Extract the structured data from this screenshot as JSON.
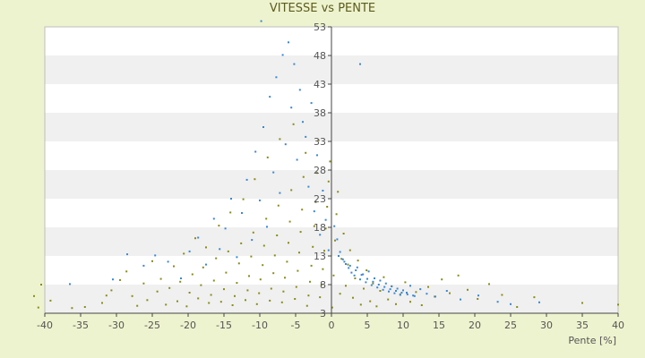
{
  "chart_data": {
    "type": "scatter",
    "title": "VITESSE vs PENTE",
    "xlabel": "Pente [%]",
    "ylabel": "",
    "xlim": [
      -40,
      40
    ],
    "ylim": [
      3,
      53
    ],
    "x_ticks": [
      -40,
      -35,
      -30,
      -25,
      -20,
      -15,
      -10,
      -5,
      0,
      5,
      10,
      15,
      20,
      25,
      30,
      35,
      40
    ],
    "y_ticks": [
      3,
      8,
      13,
      18,
      23,
      28,
      33,
      38,
      43,
      48,
      53
    ],
    "grid": "horizontal alternating bands",
    "legend": "none",
    "series": [
      {
        "color": "#8a8a1a",
        "points": [
          [
            -40.5,
            8
          ],
          [
            -41.5,
            6
          ],
          [
            -40.9,
            4
          ],
          [
            -39.2,
            5.2
          ],
          [
            -36.2,
            3.9
          ],
          [
            -34.4,
            4.1
          ],
          [
            -32.0,
            4.8
          ],
          [
            -31.4,
            6.1
          ],
          [
            -30.7,
            7.0
          ],
          [
            -29.5,
            8.8
          ],
          [
            -28.6,
            10.3
          ],
          [
            -27.8,
            6.0
          ],
          [
            -27.1,
            4.3
          ],
          [
            -26.2,
            8.2
          ],
          [
            -25.7,
            5.3
          ],
          [
            -25.0,
            12.1
          ],
          [
            -24.3,
            6.8
          ],
          [
            -23.8,
            9.0
          ],
          [
            -23.1,
            4.5
          ],
          [
            -22.6,
            7.4
          ],
          [
            -22.0,
            11.2
          ],
          [
            -21.5,
            5.1
          ],
          [
            -21.1,
            8.5
          ],
          [
            -20.6,
            13.4
          ],
          [
            -20.2,
            4.2
          ],
          [
            -19.8,
            6.6
          ],
          [
            -19.4,
            9.8
          ],
          [
            -19.0,
            16.1
          ],
          [
            -18.6,
            5.6
          ],
          [
            -18.2,
            7.9
          ],
          [
            -17.9,
            11.0
          ],
          [
            -17.5,
            14.5
          ],
          [
            -17.1,
            4.8
          ],
          [
            -16.8,
            6.2
          ],
          [
            -16.4,
            8.7
          ],
          [
            -16.1,
            12.6
          ],
          [
            -15.7,
            18.3
          ],
          [
            -15.4,
            5.0
          ],
          [
            -15.0,
            7.2
          ],
          [
            -14.7,
            10.1
          ],
          [
            -14.4,
            13.8
          ],
          [
            -14.1,
            20.6
          ],
          [
            -13.8,
            4.4
          ],
          [
            -13.5,
            6.0
          ],
          [
            -13.2,
            8.3
          ],
          [
            -12.9,
            11.7
          ],
          [
            -12.6,
            15.2
          ],
          [
            -12.3,
            22.9
          ],
          [
            -12.0,
            5.3
          ],
          [
            -11.7,
            7.0
          ],
          [
            -11.5,
            9.5
          ],
          [
            -11.2,
            12.9
          ],
          [
            -10.9,
            17.1
          ],
          [
            -10.7,
            26.4
          ],
          [
            -10.4,
            4.6
          ],
          [
            -10.1,
            6.5
          ],
          [
            -9.9,
            8.9
          ],
          [
            -9.6,
            11.4
          ],
          [
            -9.4,
            14.8
          ],
          [
            -9.1,
            19.5
          ],
          [
            -8.9,
            30.2
          ],
          [
            -8.6,
            5.2
          ],
          [
            -8.4,
            7.3
          ],
          [
            -8.1,
            10.0
          ],
          [
            -7.9,
            13.1
          ],
          [
            -7.6,
            16.6
          ],
          [
            -7.4,
            21.8
          ],
          [
            -7.2,
            33.4
          ],
          [
            -6.9,
            4.9
          ],
          [
            -6.7,
            6.8
          ],
          [
            -6.5,
            9.2
          ],
          [
            -6.2,
            12.0
          ],
          [
            -6.0,
            15.3
          ],
          [
            -5.8,
            19.0
          ],
          [
            -5.6,
            24.5
          ],
          [
            -5.3,
            36.0
          ],
          [
            -5.1,
            5.5
          ],
          [
            -4.9,
            7.6
          ],
          [
            -4.7,
            10.4
          ],
          [
            -4.5,
            13.6
          ],
          [
            -4.3,
            17.2
          ],
          [
            -4.1,
            21.1
          ],
          [
            -3.9,
            26.8
          ],
          [
            -3.6,
            31.0
          ],
          [
            -3.4,
            4.3
          ],
          [
            -3.2,
            6.1
          ],
          [
            -3.0,
            8.5
          ],
          [
            -2.8,
            11.3
          ],
          [
            -2.6,
            14.6
          ],
          [
            -2.4,
            18.2
          ],
          [
            -2.2,
            22.4
          ],
          [
            -2.0,
            27.5
          ],
          [
            -1.8,
            33.2
          ],
          [
            -1.6,
            5.8
          ],
          [
            -1.4,
            8.0
          ],
          [
            -1.2,
            10.7
          ],
          [
            -1.0,
            13.9
          ],
          [
            -0.8,
            17.8
          ],
          [
            -0.6,
            21.6
          ],
          [
            -0.4,
            26.0
          ],
          [
            -0.2,
            29.5
          ],
          [
            0.1,
            4.0
          ],
          [
            0.3,
            9.6
          ],
          [
            0.5,
            15.7
          ],
          [
            0.7,
            20.3
          ],
          [
            0.9,
            24.2
          ],
          [
            1.2,
            6.4
          ],
          [
            1.4,
            12.5
          ],
          [
            1.7,
            16.9
          ],
          [
            2.0,
            7.8
          ],
          [
            2.3,
            11.5
          ],
          [
            2.6,
            14.0
          ],
          [
            3.0,
            5.7
          ],
          [
            3.3,
            9.1
          ],
          [
            3.7,
            12.2
          ],
          [
            4.1,
            4.5
          ],
          [
            4.5,
            7.3
          ],
          [
            4.9,
            10.5
          ],
          [
            5.4,
            5.1
          ],
          [
            5.8,
            8.2
          ],
          [
            6.3,
            4.2
          ],
          [
            6.8,
            6.9
          ],
          [
            7.3,
            9.3
          ],
          [
            7.9,
            5.4
          ],
          [
            8.4,
            7.7
          ],
          [
            9.0,
            4.6
          ],
          [
            9.6,
            6.3
          ],
          [
            10.3,
            8.4
          ],
          [
            11.0,
            5.0
          ],
          [
            11.8,
            6.7
          ],
          [
            12.6,
            4.4
          ],
          [
            13.5,
            7.6
          ],
          [
            14.4,
            5.9
          ],
          [
            15.4,
            8.9
          ],
          [
            16.5,
            6.5
          ],
          [
            17.7,
            9.6
          ],
          [
            19.0,
            7.1
          ],
          [
            20.4,
            5.5
          ],
          [
            22.0,
            8.1
          ],
          [
            23.8,
            6.2
          ],
          [
            25.9,
            4.1
          ],
          [
            28.3,
            5.8
          ],
          [
            35.0,
            4.8
          ],
          [
            40.0,
            4.5
          ]
        ]
      },
      {
        "color": "#3a87d6",
        "points": [
          [
            -36.5,
            8.1
          ],
          [
            -30.5,
            8.9
          ],
          [
            -28.5,
            13.3
          ],
          [
            -26.2,
            11.3
          ],
          [
            -24.6,
            13.1
          ],
          [
            -22.8,
            12.0
          ],
          [
            -21.0,
            9.1
          ],
          [
            -19.8,
            13.8
          ],
          [
            -18.6,
            16.2
          ],
          [
            -17.5,
            11.5
          ],
          [
            -16.4,
            19.5
          ],
          [
            -15.6,
            14.2
          ],
          [
            -14.8,
            17.8
          ],
          [
            -14.0,
            23.0
          ],
          [
            -13.2,
            12.8
          ],
          [
            -12.5,
            20.5
          ],
          [
            -11.8,
            26.3
          ],
          [
            -11.1,
            15.8
          ],
          [
            -10.6,
            31.2
          ],
          [
            -10.0,
            22.7
          ],
          [
            -9.5,
            35.5
          ],
          [
            -9.0,
            18.1
          ],
          [
            -8.6,
            40.8
          ],
          [
            -8.1,
            27.6
          ],
          [
            -7.7,
            44.2
          ],
          [
            -7.2,
            24.0
          ],
          [
            -6.8,
            48.1
          ],
          [
            -6.4,
            32.5
          ],
          [
            -6.0,
            50.3
          ],
          [
            -5.6,
            38.9
          ],
          [
            -5.2,
            46.5
          ],
          [
            -4.8,
            29.8
          ],
          [
            -4.4,
            42.0
          ],
          [
            -4.0,
            36.4
          ],
          [
            -3.6,
            33.8
          ],
          [
            -3.2,
            25.1
          ],
          [
            -2.8,
            39.7
          ],
          [
            -2.4,
            20.8
          ],
          [
            -2.0,
            30.6
          ],
          [
            -1.6,
            16.7
          ],
          [
            -1.2,
            24.4
          ],
          [
            -0.8,
            19.3
          ],
          [
            -0.4,
            14.0
          ],
          [
            0.4,
            18.2
          ],
          [
            0.8,
            15.9
          ],
          [
            1.2,
            13.7
          ],
          [
            1.6,
            12.4
          ],
          [
            2.0,
            11.6
          ],
          [
            2.4,
            10.9
          ],
          [
            2.8,
            10.1
          ],
          [
            3.2,
            9.6
          ],
          [
            3.6,
            11.0
          ],
          [
            4.0,
            8.9
          ],
          [
            4.4,
            9.8
          ],
          [
            4.8,
            8.4
          ],
          [
            5.2,
            10.3
          ],
          [
            5.6,
            7.9
          ],
          [
            6.0,
            9.1
          ],
          [
            6.4,
            7.5
          ],
          [
            6.8,
            8.7
          ],
          [
            7.2,
            7.1
          ],
          [
            7.6,
            8.2
          ],
          [
            8.0,
            6.8
          ],
          [
            8.4,
            7.7
          ],
          [
            8.8,
            6.5
          ],
          [
            9.2,
            7.3
          ],
          [
            9.6,
            6.2
          ],
          [
            10.0,
            7.0
          ],
          [
            10.5,
            6.6
          ],
          [
            11.0,
            7.8
          ],
          [
            11.6,
            6.0
          ],
          [
            12.4,
            7.2
          ],
          [
            13.3,
            6.4
          ],
          [
            14.5,
            5.9
          ],
          [
            16.1,
            6.9
          ],
          [
            18.0,
            5.4
          ],
          [
            20.5,
            6.1
          ],
          [
            23.2,
            5.0
          ],
          [
            25.0,
            4.6
          ],
          [
            29.0,
            4.9
          ],
          [
            4.0,
            46.5
          ],
          [
            -9.8,
            54.0
          ],
          [
            1.0,
            13.0
          ],
          [
            1.8,
            12.0
          ],
          [
            2.6,
            11.3
          ],
          [
            3.4,
            10.5
          ],
          [
            4.2,
            9.7
          ],
          [
            5.0,
            9.0
          ],
          [
            5.8,
            8.5
          ],
          [
            6.6,
            8.0
          ],
          [
            7.4,
            7.6
          ],
          [
            8.2,
            7.2
          ],
          [
            9.0,
            6.9
          ],
          [
            9.8,
            6.6
          ],
          [
            10.6,
            6.3
          ],
          [
            11.4,
            6.1
          ]
        ]
      }
    ]
  }
}
